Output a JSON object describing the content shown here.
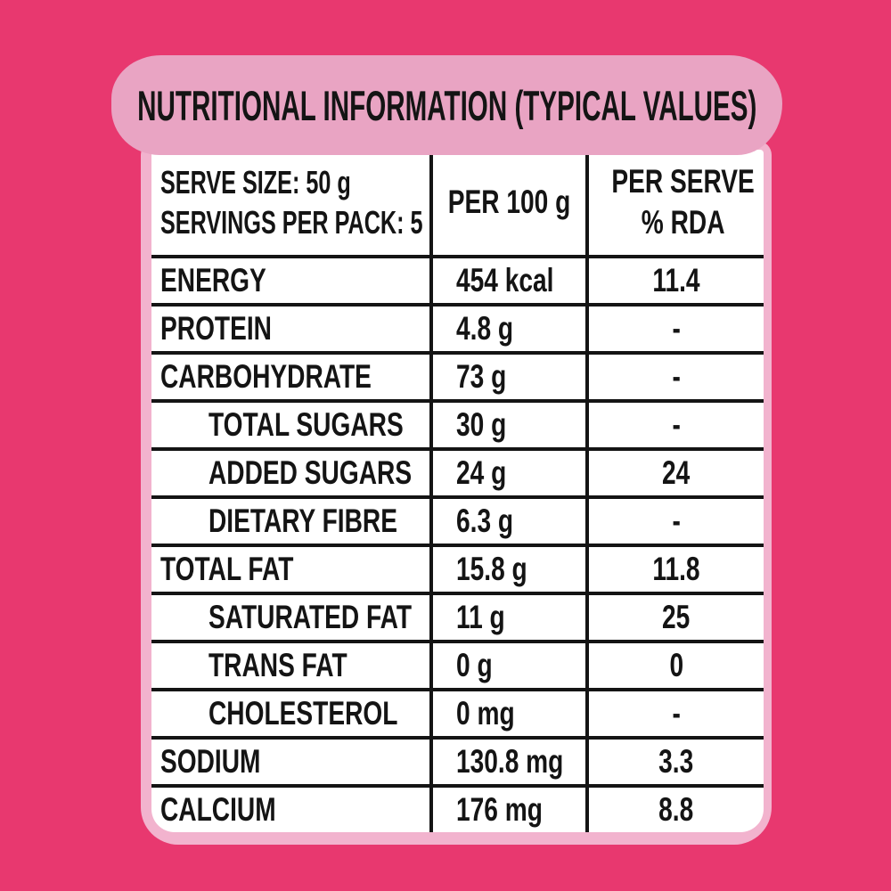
{
  "title": "NUTRITIONAL INFORMATION (TYPICAL VALUES)",
  "colors": {
    "background": "#E8386F",
    "banner": "#E9A4C3",
    "panel_border": "#F2B3CE",
    "table_background": "#FFFFFF",
    "text": "#141414",
    "grid_line": "#141414"
  },
  "table": {
    "header": {
      "serve_size_line": "SERVE SIZE: 50 g",
      "servings_line": "SERVINGS PER PACK: 5",
      "per_100g_label": "PER 100 g",
      "per_serve_label_line1": "PER SERVE",
      "per_serve_label_line2": "% RDA"
    },
    "rows": [
      {
        "label": "ENERGY",
        "per_100g": "454 kcal",
        "per_serve_rda": "11.4",
        "indent": false
      },
      {
        "label": "PROTEIN",
        "per_100g": "4.8 g",
        "per_serve_rda": "-",
        "indent": false
      },
      {
        "label": "CARBOHYDRATE",
        "per_100g": "73 g",
        "per_serve_rda": "-",
        "indent": false
      },
      {
        "label": "TOTAL SUGARS",
        "per_100g": "30 g",
        "per_serve_rda": "-",
        "indent": true
      },
      {
        "label": "ADDED SUGARS",
        "per_100g": "24 g",
        "per_serve_rda": "24",
        "indent": true
      },
      {
        "label": "DIETARY FIBRE",
        "per_100g": "6.3 g",
        "per_serve_rda": "-",
        "indent": true
      },
      {
        "label": "TOTAL FAT",
        "per_100g": "15.8 g",
        "per_serve_rda": "11.8",
        "indent": false
      },
      {
        "label": "SATURATED FAT",
        "per_100g": "11 g",
        "per_serve_rda": "25",
        "indent": true
      },
      {
        "label": "TRANS FAT",
        "per_100g": "0 g",
        "per_serve_rda": "0",
        "indent": true
      },
      {
        "label": "CHOLESTEROL",
        "per_100g": "0 mg",
        "per_serve_rda": "-",
        "indent": true
      },
      {
        "label": "SODIUM",
        "per_100g": "130.8 mg",
        "per_serve_rda": "3.3",
        "indent": false
      },
      {
        "label": "CALCIUM",
        "per_100g": "176 mg",
        "per_serve_rda": "8.8",
        "indent": false
      }
    ]
  }
}
